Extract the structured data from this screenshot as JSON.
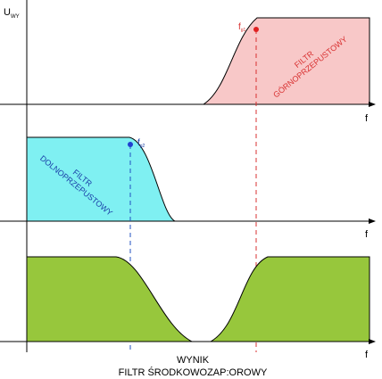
{
  "labels": {
    "y_axis_main": "U",
    "y_axis_sub": "WY",
    "x_axis": "f",
    "fg1_main": "f",
    "fg1_sub": "g1",
    "fg2_main": "f",
    "fg2_sub": "g2",
    "highpass_line1": "FILTR",
    "highpass_line2": "GÓRNOPRZEPUSTOWY",
    "lowpass_line1": "FILTR",
    "lowpass_line2": "DOLNOPRZEPUSTOWY",
    "result_line1": "WYNIK",
    "result_line2": "FILTR ŚRODKOWOZAP:OROWY"
  },
  "colors": {
    "highpass_fill": "#f8c8c8",
    "highpass_stroke": "#d83030",
    "lowpass_fill": "#7ff0f2",
    "lowpass_stroke": "#2050c0",
    "result_fill": "#97c73c",
    "marker_red": "#e02020",
    "marker_blue": "#2040d0",
    "highpass_text": "#d83030",
    "lowpass_text": "#1a3fa8"
  }
}
